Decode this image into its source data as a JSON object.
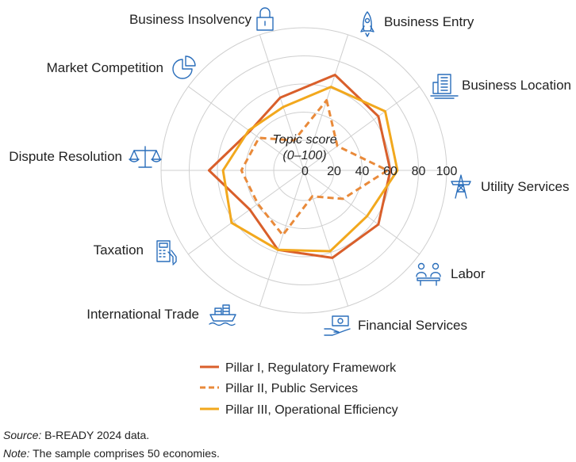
{
  "chart_data": {
    "type": "radar",
    "center_title_line1": "Topic score",
    "center_title_line2": "(0–100)",
    "rmax": 100,
    "ticks": [
      "0",
      "20",
      "40",
      "60",
      "80",
      "100"
    ],
    "tick_values": [
      0,
      20,
      40,
      60,
      80,
      100
    ],
    "categories": [
      "Business Entry",
      "Business Location",
      "Utility Services",
      "Labor",
      "Financial Services",
      "International Trade",
      "Taxation",
      "Dispute Resolution",
      "Market Competition",
      "Business Insolvency"
    ],
    "series": [
      {
        "name": "Pillar I, Regulatory Framework",
        "color": "#d95f2b",
        "dash": "solid",
        "values": [
          70,
          64,
          60,
          64,
          64,
          58,
          46,
          66,
          46,
          53
        ]
      },
      {
        "name": "Pillar II, Public Services",
        "color": "#e98a3a",
        "dash": "dashed",
        "values": [
          51,
          28,
          58,
          33,
          18,
          47,
          39,
          43,
          38,
          21
        ]
      },
      {
        "name": "Pillar III, Operational Efficiency",
        "color": "#f2a81d",
        "dash": "solid",
        "values": [
          61,
          70,
          65,
          54,
          59,
          58,
          62,
          56,
          47,
          46
        ]
      }
    ]
  },
  "icons": [
    "rocket-icon",
    "building-icon",
    "power-tower-icon",
    "meeting-people-icon",
    "money-hand-icon",
    "cargo-ship-icon",
    "calculator-hand-icon",
    "scales-icon",
    "pie-chart-icon",
    "padlock-icon"
  ],
  "footer": {
    "source_lead": "Source:",
    "source_text": "B-READY 2024 data.",
    "note_lead": "Note:",
    "note_text": "The sample comprises 50 economies."
  }
}
